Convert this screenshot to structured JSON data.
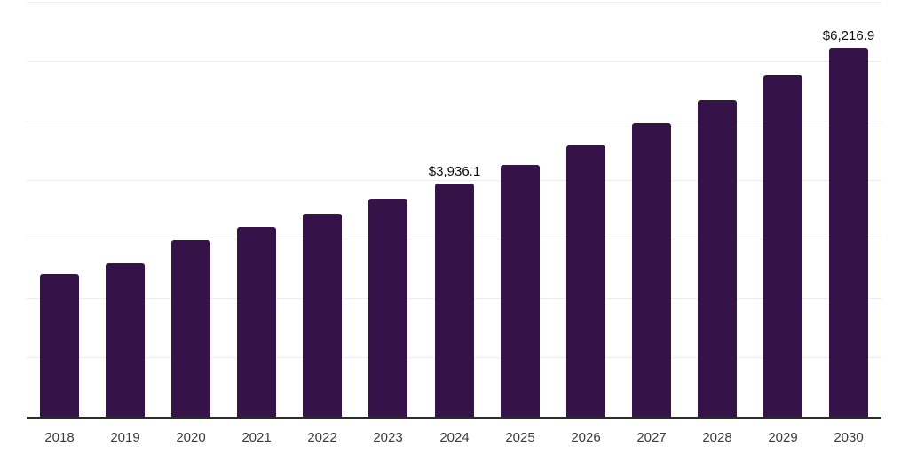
{
  "chart_data": {
    "type": "bar",
    "title": "",
    "xlabel": "",
    "ylabel": "",
    "categories": [
      "2018",
      "2019",
      "2020",
      "2021",
      "2022",
      "2023",
      "2024",
      "2025",
      "2026",
      "2027",
      "2028",
      "2029",
      "2030"
    ],
    "values": [
      2405,
      2590,
      2975,
      3200,
      3425,
      3680,
      3936.1,
      4250,
      4580,
      4945,
      5335,
      5760,
      6216.9
    ],
    "data_labels": [
      {
        "index": 6,
        "text": "$3,936.1"
      },
      {
        "index": 12,
        "text": "$6,216.9"
      }
    ],
    "ylim": [
      0,
      7000
    ],
    "gridline_step": 1000,
    "grid": true,
    "legend_position": "none",
    "y_axis_tick_labels_visible": false,
    "colors": {
      "bar": "#351349",
      "gridline": "#ededed",
      "axis_line": "#2b2b2b",
      "tick_label": "#3a3a3a",
      "data_label": "#0d0d0d",
      "background": "#ffffff"
    }
  }
}
